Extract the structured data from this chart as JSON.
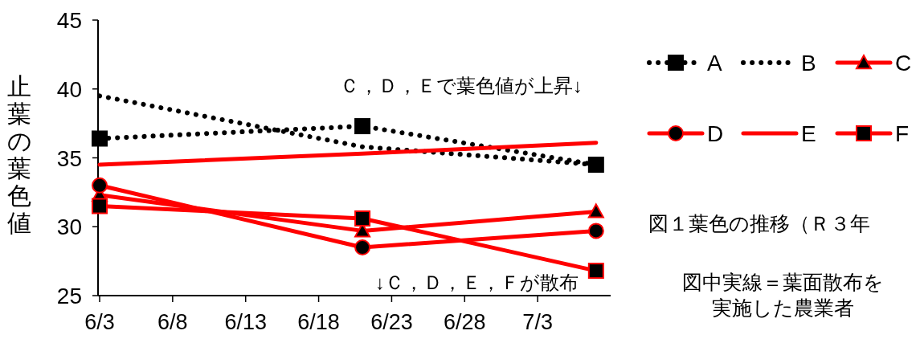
{
  "chart_data": {
    "type": "line",
    "ylabel": "止葉の葉色値",
    "x": [
      "--06-03",
      "--06-21",
      "--07-07"
    ],
    "xlim": [
      "--06-03",
      "--07-08"
    ],
    "xticks": [
      {
        "value": "--06-03",
        "label": "6/3"
      },
      {
        "value": "--06-08",
        "label": "6/8"
      },
      {
        "value": "--06-13",
        "label": "6/13"
      },
      {
        "value": "--06-18",
        "label": "6/18"
      },
      {
        "value": "--06-23",
        "label": "6/23"
      },
      {
        "value": "--06-28",
        "label": "6/28"
      },
      {
        "value": "--07-03",
        "label": "7/3"
      }
    ],
    "ylim": [
      25,
      45
    ],
    "yticks": [
      25,
      30,
      35,
      40,
      45
    ],
    "grid": false,
    "legend": "right",
    "series": [
      {
        "name": "A",
        "color": "#000000",
        "line_style": "dotted",
        "marker": "square",
        "values": [
          36.4,
          37.3,
          34.5
        ]
      },
      {
        "name": "B",
        "color": "#000000",
        "line_style": "dotted",
        "marker": "none",
        "values": [
          39.5,
          35.8,
          34.5
        ]
      },
      {
        "name": "C",
        "color": "#ff0000",
        "line_style": "solid",
        "marker": "triangle",
        "values": [
          32.3,
          29.7,
          31.1
        ]
      },
      {
        "name": "D",
        "color": "#ff0000",
        "line_style": "solid",
        "marker": "circle",
        "values": [
          33.0,
          28.5,
          29.7
        ]
      },
      {
        "name": "E",
        "color": "#ff0000",
        "line_style": "solid",
        "marker": "none",
        "values": [
          34.5,
          35.3,
          36.1
        ]
      },
      {
        "name": "F",
        "color": "#ff0000",
        "line_style": "solid",
        "marker": "square",
        "values": [
          31.5,
          30.6,
          26.8
        ]
      }
    ],
    "annotations": [
      "Ｃ，Ｄ，Ｅで葉色値が上昇↓",
      "↓Ｃ，Ｄ，Ｅ，Ｆが散布",
      "図１葉色の推移（Ｒ３年",
      "図中実線＝葉面散布を",
      "実施した農業者"
    ]
  }
}
